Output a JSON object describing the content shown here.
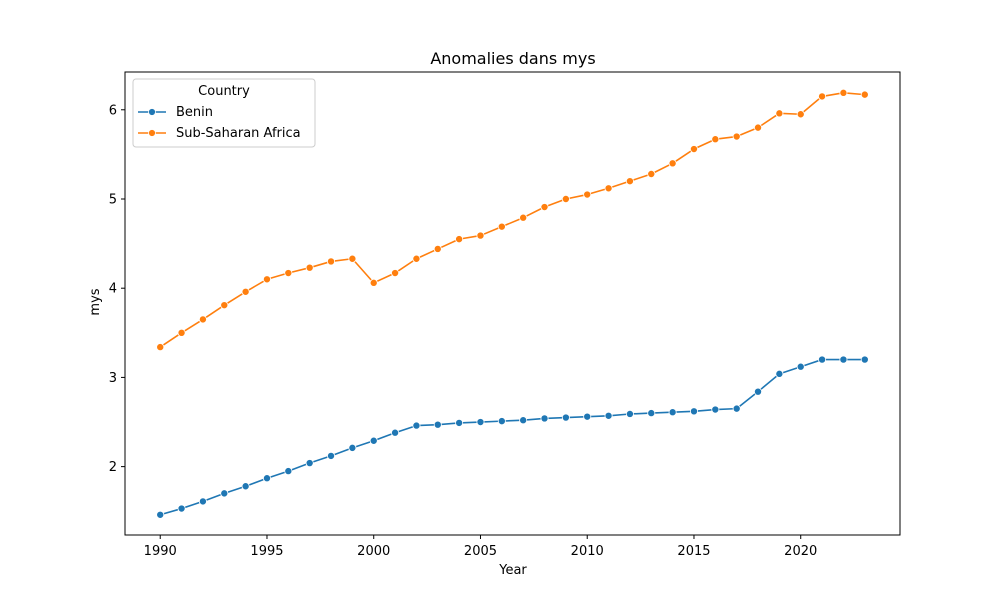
{
  "chart_data": {
    "type": "line",
    "title": "Anomalies dans mys",
    "xlabel": "Year",
    "ylabel": "mys",
    "xlim": [
      1988.35,
      2024.65
    ],
    "ylim": [
      1.2335,
      6.4235
    ],
    "x_ticks": [
      "1990",
      "1995",
      "2000",
      "2005",
      "2010",
      "2015",
      "2020"
    ],
    "y_ticks": [
      "2",
      "3",
      "4",
      "5",
      "6"
    ],
    "grid": false,
    "legend": {
      "title": "Country",
      "placement": "upper-left"
    },
    "x": [
      1990,
      1991,
      1992,
      1993,
      1994,
      1995,
      1996,
      1997,
      1998,
      1999,
      2000,
      2001,
      2002,
      2003,
      2004,
      2005,
      2006,
      2007,
      2008,
      2009,
      2010,
      2011,
      2012,
      2013,
      2014,
      2015,
      2016,
      2017,
      2018,
      2019,
      2020,
      2021,
      2022,
      2023
    ],
    "series": [
      {
        "name": "Benin",
        "color": "#1f77b4",
        "marker": "circle",
        "values": [
          1.46,
          1.53,
          1.61,
          1.7,
          1.78,
          1.87,
          1.95,
          2.04,
          2.12,
          2.21,
          2.29,
          2.38,
          2.46,
          2.47,
          2.49,
          2.5,
          2.51,
          2.52,
          2.54,
          2.55,
          2.56,
          2.57,
          2.59,
          2.6,
          2.61,
          2.62,
          2.64,
          2.65,
          2.84,
          3.04,
          3.12,
          3.2,
          3.2,
          3.2
        ]
      },
      {
        "name": "Sub-Saharan Africa",
        "color": "#ff7f0e",
        "marker": "circle",
        "values": [
          3.34,
          3.5,
          3.65,
          3.81,
          3.96,
          4.1,
          4.17,
          4.23,
          4.3,
          4.33,
          4.06,
          4.17,
          4.33,
          4.44,
          4.55,
          4.59,
          4.69,
          4.79,
          4.91,
          5.0,
          5.05,
          5.12,
          5.2,
          5.28,
          5.4,
          5.56,
          5.67,
          5.7,
          5.8,
          5.96,
          5.95,
          6.15,
          6.19,
          6.17
        ]
      }
    ]
  }
}
